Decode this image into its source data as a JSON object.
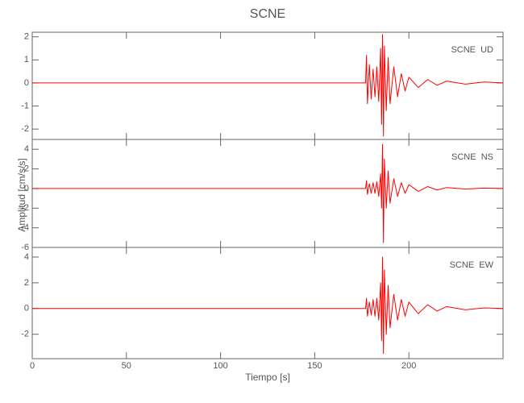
{
  "title": "SCNE",
  "ylabel": "Amplitud [cm/s/s]",
  "xlabel": "Tiempo [s]",
  "chart_data": [
    {
      "type": "line",
      "label": "SCNE  UD",
      "x": [
        0,
        40,
        80,
        120,
        160,
        177,
        177.5,
        178,
        179,
        180,
        181,
        182,
        183,
        184,
        185,
        185.5,
        186,
        186.5,
        187,
        188,
        189,
        190,
        192,
        194,
        196,
        198,
        200,
        205,
        210,
        215,
        220,
        230,
        240,
        250
      ],
      "series": [
        {
          "color": "#ff0000",
          "values": [
            0,
            0,
            0,
            0,
            0,
            0,
            1.2,
            -0.9,
            0.8,
            -0.7,
            0.6,
            -0.6,
            0.7,
            -0.8,
            1.5,
            -1.8,
            2.1,
            -2.3,
            1.6,
            -1.2,
            1.1,
            -0.9,
            0.7,
            -0.6,
            0.4,
            -0.35,
            0.25,
            -0.2,
            0.15,
            -0.1,
            0.08,
            -0.05,
            0.04,
            0
          ]
        }
      ],
      "xlim": [
        0,
        250
      ],
      "xticks": [
        0,
        50,
        100,
        150,
        200
      ],
      "ylim": [
        -2.45,
        2.2
      ],
      "yticks": [
        -2,
        -1,
        0,
        1,
        2
      ]
    },
    {
      "type": "line",
      "label": "SCNE  NS",
      "x": [
        0,
        40,
        80,
        120,
        160,
        177,
        177.5,
        178,
        179,
        180,
        181,
        182,
        183,
        184,
        185,
        185.5,
        186,
        186.5,
        187,
        188,
        189,
        190,
        192,
        194,
        196,
        198,
        200,
        205,
        210,
        215,
        220,
        230,
        240,
        250
      ],
      "series": [
        {
          "color": "#ff0000",
          "values": [
            0,
            0,
            0,
            0,
            0,
            0,
            0.8,
            -0.6,
            0.5,
            -0.5,
            0.6,
            -0.5,
            0.7,
            -0.8,
            1.5,
            -2,
            4.5,
            -5.5,
            3,
            -2,
            1.8,
            -1.5,
            1,
            -0.8,
            0.6,
            -0.5,
            0.4,
            -0.3,
            0.2,
            -0.15,
            0.1,
            -0.05,
            0.04,
            0
          ]
        }
      ],
      "xlim": [
        0,
        250
      ],
      "xticks": [
        0,
        50,
        100,
        150,
        200
      ],
      "ylim": [
        -6,
        5
      ],
      "yticks": [
        -6,
        -4,
        -2,
        0,
        2,
        4
      ]
    },
    {
      "type": "line",
      "label": "SCNE  EW",
      "x": [
        0,
        40,
        80,
        120,
        160,
        177,
        177.5,
        178,
        179,
        180,
        181,
        182,
        183,
        184,
        185,
        185.5,
        186,
        186.5,
        187,
        188,
        189,
        190,
        192,
        194,
        196,
        198,
        200,
        205,
        210,
        215,
        220,
        230,
        240,
        250
      ],
      "series": [
        {
          "color": "#ff0000",
          "values": [
            0,
            0,
            0,
            0,
            0,
            0,
            0.8,
            -0.6,
            0.5,
            -0.5,
            0.7,
            -0.6,
            0.8,
            -0.9,
            2,
            -2.5,
            4,
            -3.5,
            3,
            -2,
            1.8,
            -1.5,
            1.1,
            -0.9,
            0.7,
            -0.6,
            0.5,
            -0.4,
            0.3,
            -0.2,
            0.15,
            -0.1,
            0.05,
            0
          ]
        }
      ],
      "xlim": [
        0,
        250
      ],
      "xticks": [
        0,
        50,
        100,
        150,
        200
      ],
      "ylim": [
        -3.9,
        4.75
      ],
      "yticks": [
        -2,
        0,
        2,
        4
      ]
    }
  ]
}
